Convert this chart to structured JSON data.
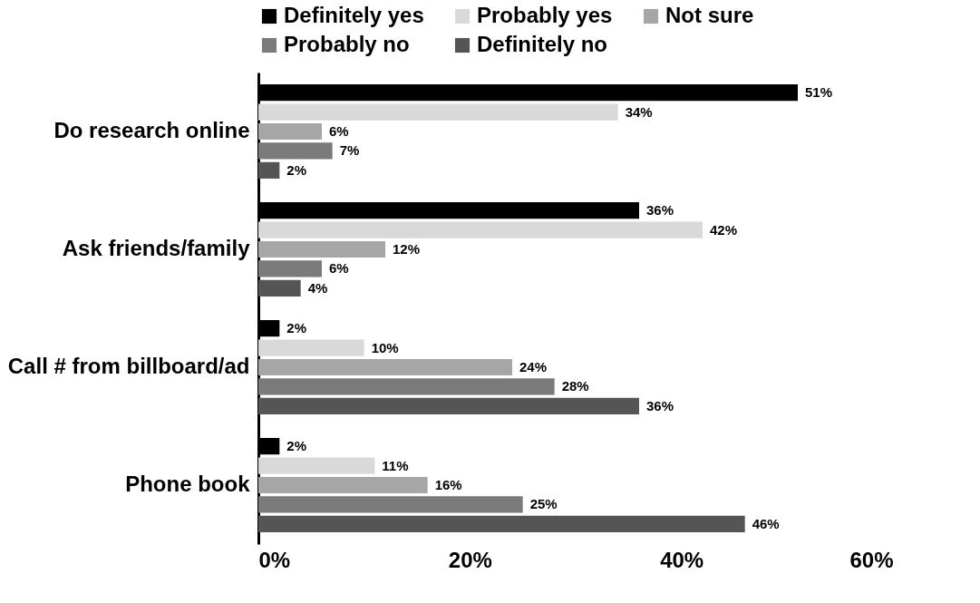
{
  "chart_data": {
    "type": "bar",
    "orientation": "horizontal",
    "categories": [
      "Do research online",
      "Ask friends/family",
      "Call # from billboard/ad",
      "Phone book"
    ],
    "series": [
      {
        "name": "Definitely yes",
        "color": "#000000",
        "values": [
          51,
          36,
          2,
          2
        ],
        "value_labels": [
          "51%",
          "36%",
          "2%",
          "2%"
        ]
      },
      {
        "name": "Probably yes",
        "color": "#d9d9d9",
        "values": [
          34,
          42,
          10,
          11
        ],
        "value_labels": [
          "34%",
          "42%",
          "10%",
          "11%"
        ]
      },
      {
        "name": "Not sure",
        "color": "#a6a6a6",
        "values": [
          6,
          12,
          24,
          16
        ],
        "value_labels": [
          "6%",
          "12%",
          "24%",
          "16%"
        ]
      },
      {
        "name": "Probably no",
        "color": "#7a7a7a",
        "values": [
          7,
          6,
          28,
          25
        ],
        "value_labels": [
          "7%",
          "6%",
          "28%",
          "25%"
        ]
      },
      {
        "name": "Definitely no",
        "color": "#555555",
        "values": [
          2,
          4,
          36,
          46
        ],
        "value_labels": [
          "2%",
          "4%",
          "36%",
          "46%"
        ]
      }
    ],
    "xlim": [
      0,
      60
    ],
    "xticks": [
      {
        "value": 0,
        "label": "0%"
      },
      {
        "value": 20,
        "label": "20%"
      },
      {
        "value": 40,
        "label": "40%"
      },
      {
        "value": 60,
        "label": "60%"
      }
    ],
    "grid": false,
    "legend": "top"
  }
}
